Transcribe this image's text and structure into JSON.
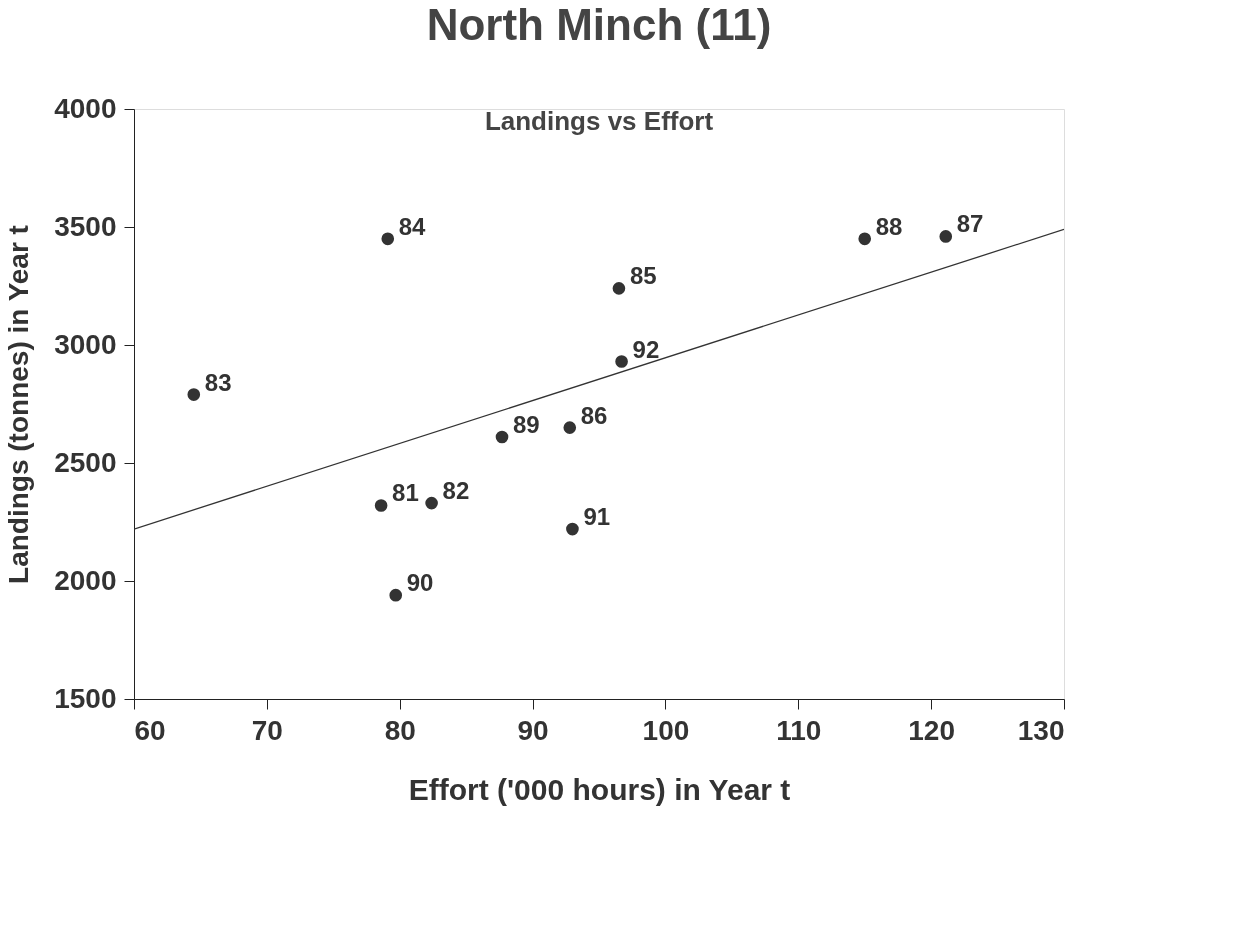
{
  "chart_data": {
    "type": "scatter",
    "title": "North Minch (11)",
    "subtitle": "Landings vs Effort",
    "xlabel": "Effort ('000 hours) in Year t",
    "ylabel": "Landings (tonnes) in Year t",
    "xlim": [
      60,
      130
    ],
    "ylim": [
      1500,
      4000
    ],
    "xticks": [
      60,
      70,
      80,
      90,
      100,
      110,
      120,
      130
    ],
    "yticks": [
      1500,
      2000,
      2500,
      3000,
      3500,
      4000
    ],
    "grid": false,
    "series": [
      {
        "color": "#333333",
        "marker": "circle",
        "x": [
          78.6,
          82.4,
          64.5,
          79.1,
          96.5,
          92.8,
          121.1,
          115.0,
          87.7,
          79.7,
          93.0,
          96.7
        ],
        "values": [
          2320,
          2330,
          2790,
          3450,
          3240,
          2650,
          3460,
          3450,
          2610,
          1940,
          2220,
          2930
        ]
      },
      {
        "type": "line",
        "color": "#333333",
        "x": [
          60,
          130
        ],
        "values": [
          2220,
          3490
        ]
      }
    ],
    "annotations": [
      {
        "text": "81",
        "x": 78.6,
        "y": 2320
      },
      {
        "text": "82",
        "x": 82.4,
        "y": 2330
      },
      {
        "text": "83",
        "x": 64.5,
        "y": 2790
      },
      {
        "text": "84",
        "x": 79.1,
        "y": 3450
      },
      {
        "text": "85",
        "x": 96.5,
        "y": 3240
      },
      {
        "text": "86",
        "x": 92.8,
        "y": 2650
      },
      {
        "text": "87",
        "x": 121.1,
        "y": 3460
      },
      {
        "text": "88",
        "x": 115.0,
        "y": 3450
      },
      {
        "text": "89",
        "x": 87.7,
        "y": 2610
      },
      {
        "text": "90",
        "x": 79.7,
        "y": 1940
      },
      {
        "text": "91",
        "x": 93.0,
        "y": 2220
      },
      {
        "text": "92",
        "x": 96.7,
        "y": 2930
      }
    ]
  }
}
